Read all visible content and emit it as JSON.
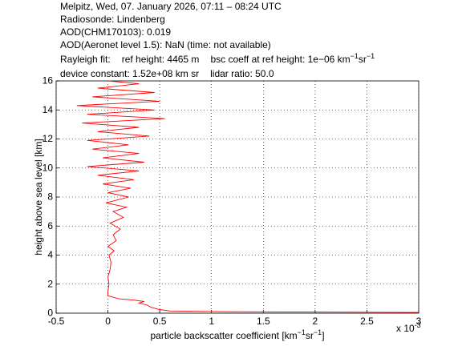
{
  "chart_data": {
    "type": "line",
    "header": {
      "site": "Melpitz, Wed, 07. January 2026, 07:11 – 08:24 UTC",
      "radiosonde": "Radiosonde: Lindenberg",
      "aod": "AOD(CHM170103): 0.019",
      "aeronet": "AOD(Aeronet level 1.5): NaN   (time: not available)",
      "rayleigh": [
        "Rayleigh fit:",
        "ref height: 4465 m",
        "bsc coeff at ref height: 1e−06 km",
        "−1",
        "sr",
        "−1"
      ],
      "device": [
        "device constant: 1.52e+08 km sr",
        "lidar ratio: 50.0"
      ]
    },
    "xlabel": [
      "particle backscatter coefficient [km",
      "−1",
      "sr",
      "−1",
      "]"
    ],
    "ylabel": "height above sea level [km]",
    "x_multiplier": [
      "x 10",
      "-3"
    ],
    "xlim": [
      -0.5,
      3
    ],
    "xticks": [
      -0.5,
      0,
      0.5,
      1,
      1.5,
      2,
      2.5,
      3
    ],
    "ylim": [
      0,
      16
    ],
    "yticks": [
      0,
      2,
      4,
      6,
      8,
      10,
      12,
      14,
      16
    ],
    "grid": true,
    "series": [
      {
        "color": "#ff0000",
        "x": [
          3.0,
          1.2,
          0.6,
          0.5,
          0.42,
          0.38,
          0.3,
          0.35,
          0.25,
          0.1,
          0.05,
          0.0,
          0.0,
          0.01,
          0.0,
          0.02,
          0.03,
          0.01,
          0.06,
          0.0,
          0.08,
          0.05,
          0.12,
          0.02,
          0.15,
          0.05,
          0.18,
          -0.02,
          0.2,
          0.0,
          0.22,
          -0.05,
          0.25,
          -0.1,
          0.3,
          -0.2,
          0.35,
          -0.05,
          0.3,
          -0.15,
          0.2,
          -0.2,
          0.4,
          -0.1,
          0.3,
          -0.25,
          0.55,
          -0.2,
          0.45,
          -0.3,
          0.5,
          -0.15,
          0.45,
          -0.1,
          0.3,
          0.0
        ],
        "values": [
          0.05,
          0.1,
          0.15,
          0.25,
          0.4,
          0.55,
          0.7,
          0.8,
          0.9,
          1.0,
          1.1,
          1.2,
          1.5,
          2,
          2.5,
          3,
          3.5,
          4,
          4.3,
          4.6,
          5,
          5.4,
          5.8,
          6.2,
          6.6,
          7,
          7.3,
          7.6,
          8,
          8.3,
          8.6,
          8.9,
          9.2,
          9.5,
          9.8,
          10.1,
          10.4,
          10.7,
          11,
          11.3,
          11.6,
          11.9,
          12.2,
          12.5,
          12.8,
          13.1,
          13.4,
          13.7,
          14,
          14.3,
          14.6,
          14.9,
          15.2,
          15.5,
          15.8,
          16
        ]
      }
    ]
  }
}
